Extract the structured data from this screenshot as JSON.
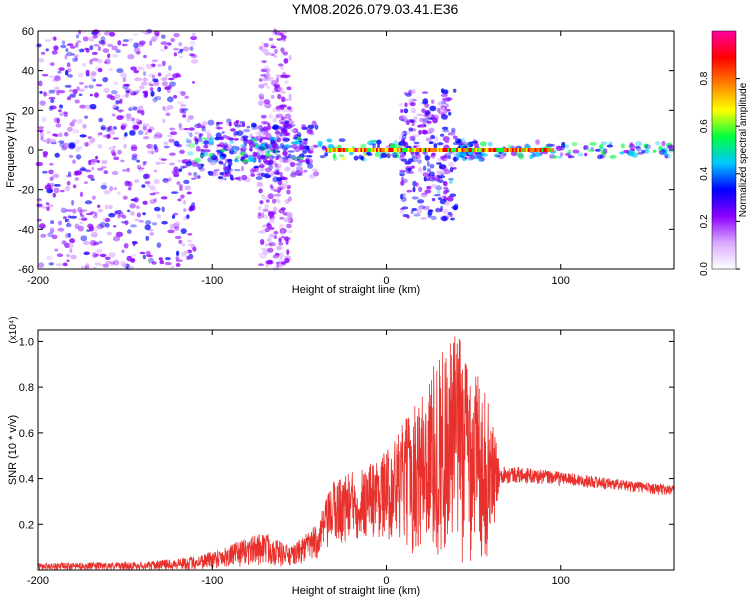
{
  "title": "YM08.2026.079.03.41.E36",
  "colors": {
    "signal": "#e8302c",
    "background": "#ffffff",
    "axis": "#000000"
  },
  "chart_data": [
    {
      "type": "heatmap",
      "name": "spectrogram",
      "xlabel": "Height of straight line (km)",
      "ylabel": "Frequency (Hz)",
      "xlim": [
        -200,
        165
      ],
      "ylim": [
        -60,
        60
      ],
      "xticks": [
        -200,
        -100,
        0,
        100
      ],
      "yticks": [
        -60,
        -40,
        -20,
        0,
        20,
        40,
        60
      ],
      "colorbar": {
        "label": "Normalized spectral amplitude",
        "range": [
          0,
          1
        ],
        "ticks": [
          "0.0",
          "0.2",
          "0.4",
          "0.6",
          "0.8"
        ],
        "colormap": [
          "#ffffff",
          "#d9a8ff",
          "#8b00ff",
          "#0000ff",
          "#00c8ff",
          "#00ff40",
          "#ffff00",
          "#ff8000",
          "#ff0000",
          "#ff00a0"
        ]
      },
      "regions": [
        {
          "x": [
            -200,
            -110
          ],
          "y": [
            -60,
            60
          ],
          "level": 0.25,
          "desc": "sparse noise"
        },
        {
          "x": [
            -73,
            -55
          ],
          "y": [
            -60,
            60
          ],
          "level": 0.2,
          "desc": "noise column"
        },
        {
          "x": [
            -110,
            -40
          ],
          "y": [
            -15,
            15
          ],
          "level": 0.3
        },
        {
          "x": [
            -115,
            -45
          ],
          "y": [
            -6,
            6
          ],
          "level": 0.45
        },
        {
          "x": [
            -40,
            10
          ],
          "y": [
            -5,
            5
          ],
          "level": 0.5
        },
        {
          "x": [
            8,
            40
          ],
          "y": [
            -35,
            30
          ],
          "level": 0.3
        },
        {
          "x": [
            40,
            55
          ],
          "y": [
            -5,
            5
          ],
          "level": 0.4
        },
        {
          "x": [
            55,
            165
          ],
          "y": [
            -4,
            4
          ],
          "level": 0.45
        }
      ],
      "peak_band": {
        "x": [
          -35,
          95
        ],
        "y": [
          -1,
          1
        ],
        "level": 0.95
      }
    },
    {
      "type": "line",
      "name": "snr",
      "xlabel": "Height of straight line (km)",
      "ylabel": "SNR (10 * v/v)",
      "y_multiplier": "(x10⁴)",
      "xlim": [
        -200,
        165
      ],
      "ylim": [
        0,
        1.05
      ],
      "xticks": [
        -200,
        -100,
        0,
        100
      ],
      "yticks": [
        0.2,
        0.4,
        0.6,
        0.8,
        1.0
      ],
      "envelope": [
        {
          "x": -200,
          "lo": 0.0,
          "hi": 0.03
        },
        {
          "x": -140,
          "lo": 0.0,
          "hi": 0.035
        },
        {
          "x": -110,
          "lo": 0.0,
          "hi": 0.06
        },
        {
          "x": -90,
          "lo": 0.01,
          "hi": 0.11
        },
        {
          "x": -70,
          "lo": 0.02,
          "hi": 0.17
        },
        {
          "x": -55,
          "lo": 0.01,
          "hi": 0.1
        },
        {
          "x": -40,
          "lo": 0.04,
          "hi": 0.2
        },
        {
          "x": -30,
          "lo": 0.1,
          "hi": 0.4
        },
        {
          "x": -15,
          "lo": 0.12,
          "hi": 0.45
        },
        {
          "x": 0,
          "lo": 0.14,
          "hi": 0.52
        },
        {
          "x": 10,
          "lo": 0.08,
          "hi": 0.65
        },
        {
          "x": 20,
          "lo": 0.04,
          "hi": 0.78
        },
        {
          "x": 30,
          "lo": 0.03,
          "hi": 0.95
        },
        {
          "x": 40,
          "lo": 0.02,
          "hi": 1.05
        },
        {
          "x": 50,
          "lo": 0.03,
          "hi": 0.92
        },
        {
          "x": 60,
          "lo": 0.05,
          "hi": 0.7
        },
        {
          "x": 65,
          "lo": 0.38,
          "hi": 0.46
        },
        {
          "x": 100,
          "lo": 0.37,
          "hi": 0.43
        },
        {
          "x": 130,
          "lo": 0.35,
          "hi": 0.4
        },
        {
          "x": 165,
          "lo": 0.32,
          "hi": 0.37
        }
      ]
    }
  ]
}
